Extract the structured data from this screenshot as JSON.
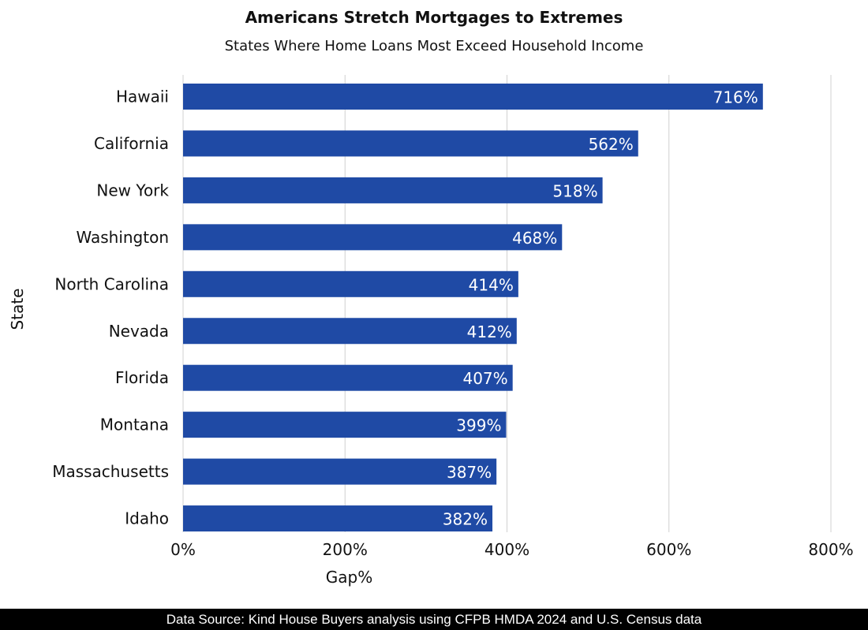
{
  "chart_data": {
    "type": "bar",
    "orientation": "horizontal",
    "title": "Americans Stretch Mortgages to Extremes",
    "subtitle": "States Where Home Loans Most Exceed Household Income",
    "xlabel": "Gap%",
    "ylabel": "State",
    "categories": [
      "Hawaii",
      "California",
      "New York",
      "Washington",
      "North Carolina",
      "Nevada",
      "Florida",
      "Montana",
      "Massachusetts",
      "Idaho"
    ],
    "values": [
      716,
      562,
      518,
      468,
      414,
      412,
      407,
      399,
      387,
      382
    ],
    "data_labels": [
      "716%",
      "562%",
      "518%",
      "468%",
      "414%",
      "412%",
      "407%",
      "399%",
      "387%",
      "382%"
    ],
    "xlim": [
      0,
      800
    ],
    "xticks": [
      0,
      200,
      400,
      600,
      800
    ],
    "xtick_labels": [
      "0%",
      "200%",
      "400%",
      "600%",
      "800%"
    ],
    "grid": "vertical",
    "bar_color": "#1f4aa5",
    "source": "Data Source:  Kind House Buyers analysis using CFPB HMDA 2024 and U.S. Census data"
  }
}
